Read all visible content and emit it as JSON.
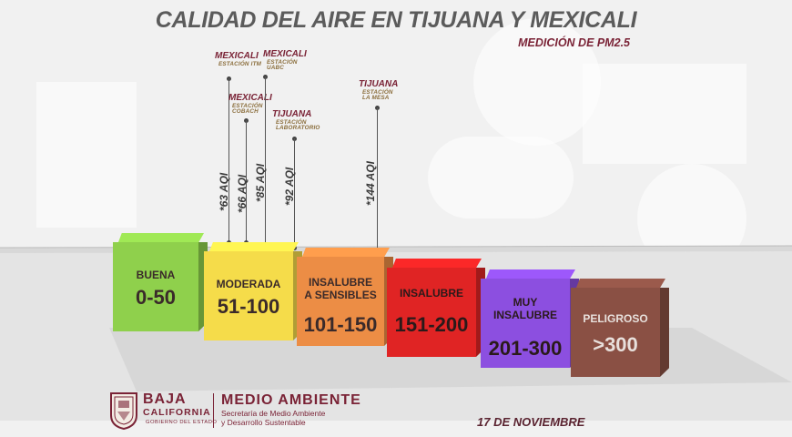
{
  "header": {
    "title": "CALIDAD DEL AIRE EN TIJUANA Y MEXICALI",
    "subtitle": "MEDICIÓN DE  PM2.5"
  },
  "stations": [
    {
      "city": "MEXICALI",
      "detail": "ESTACIÓN ITM",
      "detail2": "",
      "aqi": "*63 AQI",
      "category": "MODERADA"
    },
    {
      "city": "MEXICALI",
      "detail": "ESTACIÓN",
      "detail2": "COBACH",
      "aqi": "*66 AQI",
      "category": "MODERADA"
    },
    {
      "city": "MEXICALI",
      "detail": "ESTACIÓN",
      "detail2": "UABC",
      "aqi": "*85 AQI",
      "category": "MODERADA"
    },
    {
      "city": "TIJUANA",
      "detail": "ESTACIÓN",
      "detail2": "LABORATORIO",
      "aqi": "*92 AQI",
      "category": "MODERADA"
    },
    {
      "city": "TIJUANA",
      "detail": "ESTACIÓN",
      "detail2": "LA MESA",
      "aqi": "*144 AQI",
      "category": "INSALUBRE A SENSIBLES"
    }
  ],
  "categories": [
    {
      "label_line1": "BUENA",
      "label_line2": "",
      "range": "0-50",
      "color": "#8fd04c"
    },
    {
      "label_line1": "MODERADA",
      "label_line2": "",
      "range": "51-100",
      "color": "#f5dc4a"
    },
    {
      "label_line1": "INSALUBRE",
      "label_line2": "A SENSIBLES",
      "range": "101-150",
      "color": "#ec8d45"
    },
    {
      "label_line1": "INSALUBRE",
      "label_line2": "",
      "range": "151-200",
      "color": "#e02424"
    },
    {
      "label_line1": "MUY",
      "label_line2": "INSALUBRE",
      "range": "201-300",
      "color": "#8c4fe0"
    },
    {
      "label_line1": "PELIGROSO",
      "label_line2": "",
      "range": ">300",
      "color": "#8a5044"
    }
  ],
  "footer": {
    "state_line1": "BAJA",
    "state_line2": "CALIFORNIA",
    "state_line3": "GOBIERNO DEL ESTADO",
    "agency": "MEDIO AMBIENTE",
    "agency_sub1": "Secretaría de Medio Ambiente",
    "agency_sub2": "y Desarrollo Sustentable",
    "date": "17 DE NOVIEMBRE",
    "seal_icon": "state-seal-icon"
  }
}
